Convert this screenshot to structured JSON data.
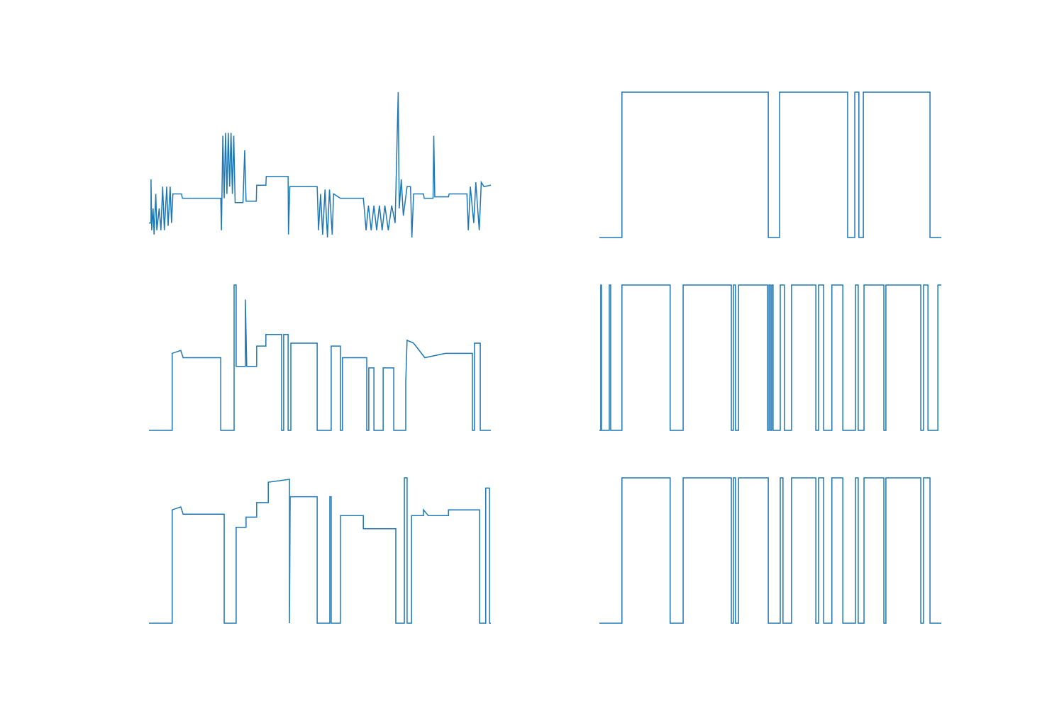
{
  "chart_data": [
    {
      "type": "line",
      "color": "#1f77b4",
      "xlim": [
        0,
        100
      ],
      "ylim": [
        0,
        1
      ],
      "x": [
        0,
        0.6,
        0.6,
        0.8,
        1.2,
        1.5,
        2.0,
        2.3,
        3.0,
        3.5,
        4.0,
        4.5,
        5.2,
        5.6,
        6.2,
        6.6,
        7.0,
        9.5,
        9.8,
        21.0,
        21.2,
        21.6,
        22.0,
        22.4,
        22.8,
        23.2,
        23.6,
        24.0,
        24.4,
        24.8,
        25.2,
        27.5,
        28.0,
        28.4,
        31.4,
        31.5,
        34.2,
        34.3,
        40.7,
        40.8,
        41.2,
        49.2,
        49.6,
        50.2,
        50.8,
        51.5,
        52.2,
        52.8,
        53.6,
        54.0,
        56.0,
        62.7,
        62.9,
        63.5,
        64.2,
        65.0,
        65.8,
        66.6,
        67.4,
        68.2,
        69.0,
        70.0,
        71.0,
        72.0,
        72.9,
        73.2,
        73.8,
        74.4,
        75.5,
        76.5,
        76.9,
        77.4,
        80.3,
        80.5,
        83.1,
        83.3,
        83.6,
        87.6,
        87.8,
        93.0,
        93.4,
        94.0,
        95.0,
        95.6,
        96.6,
        97.2,
        98.0,
        100
      ],
      "values": [
        0.1,
        0.1,
        0.4,
        0.05,
        0.2,
        0.02,
        0.3,
        0.05,
        0.2,
        0.05,
        0.35,
        0.05,
        0.35,
        0.08,
        0.35,
        0.1,
        0.3,
        0.3,
        0.27,
        0.27,
        0.05,
        0.7,
        0.27,
        0.72,
        0.3,
        0.72,
        0.35,
        0.72,
        0.3,
        0.7,
        0.24,
        0.24,
        0.6,
        0.25,
        0.25,
        0.36,
        0.36,
        0.42,
        0.42,
        0.02,
        0.35,
        0.35,
        0.05,
        0.3,
        0.02,
        0.33,
        0.0,
        0.33,
        0.02,
        0.3,
        0.27,
        0.27,
        0.22,
        0.05,
        0.22,
        0.05,
        0.22,
        0.05,
        0.22,
        0.05,
        0.22,
        0.05,
        0.22,
        0.1,
        1.0,
        0.2,
        0.4,
        0.15,
        0.35,
        0.35,
        0.0,
        0.3,
        0.3,
        0.27,
        0.27,
        0.7,
        0.28,
        0.28,
        0.3,
        0.3,
        0.05,
        0.35,
        0.1,
        0.38,
        0.05,
        0.38,
        0.35,
        0.36
      ]
    },
    {
      "type": "line",
      "color": "#1f77b4",
      "xlim": [
        0,
        100
      ],
      "ylim": [
        0,
        1
      ],
      "x": [
        0,
        6.6,
        6.6,
        49.4,
        49.4,
        52.7,
        52.7,
        72.6,
        72.6,
        74.7,
        74.7,
        75.9,
        75.9,
        77.2,
        77.2,
        96.7,
        96.7,
        100
      ],
      "values": [
        0,
        0,
        1,
        1,
        0,
        0,
        1,
        1,
        0,
        0,
        1,
        1,
        0,
        0,
        1,
        1,
        0,
        0
      ]
    },
    {
      "type": "line",
      "color": "#1f77b4",
      "xlim": [
        0,
        100
      ],
      "ylim": [
        0,
        1
      ],
      "x": [
        0,
        6.8,
        6.8,
        9.3,
        10.0,
        21.0,
        21.0,
        24.9,
        24.9,
        25.5,
        25.5,
        28.2,
        28.2,
        28.6,
        31.5,
        31.5,
        34.2,
        34.2,
        38.8,
        38.8,
        39.4,
        39.4,
        40.7,
        40.7,
        41.5,
        41.5,
        49.2,
        49.2,
        53.3,
        53.3,
        56.0,
        56.0,
        56.6,
        56.6,
        63.7,
        63.7,
        64.3,
        64.3,
        65.8,
        65.8,
        68.5,
        68.5,
        71.6,
        71.6,
        75.1,
        75.1,
        75.5,
        77.4,
        80.7,
        86.7,
        94.6,
        94.6,
        95.2,
        95.2,
        96.9,
        96.9,
        100
      ],
      "values": [
        0,
        0,
        0.53,
        0.55,
        0.5,
        0.5,
        0,
        0,
        1.0,
        1.0,
        0.44,
        0.44,
        0.9,
        0.44,
        0.44,
        0.58,
        0.58,
        0.66,
        0.66,
        0,
        0,
        0.66,
        0.66,
        0,
        0,
        0.6,
        0.6,
        0,
        0,
        0.58,
        0.58,
        0,
        0,
        0.5,
        0.5,
        0,
        0,
        0.43,
        0.43,
        0,
        0,
        0.43,
        0.43,
        0,
        0,
        0.33,
        0.62,
        0.6,
        0.5,
        0.53,
        0.53,
        0,
        0,
        0.6,
        0.6,
        0,
        0
      ]
    },
    {
      "type": "line",
      "color": "#1f77b4",
      "xlim": [
        0,
        100
      ],
      "ylim": [
        0,
        1
      ],
      "x": [
        0,
        0.4,
        0.4,
        0.6,
        0.6,
        2.9,
        2.9,
        3.3,
        3.3,
        6.6,
        6.6,
        20.7,
        20.7,
        24.5,
        24.5,
        38.6,
        38.6,
        39.2,
        39.2,
        39.8,
        39.8,
        40.7,
        40.7,
        49.2,
        49.2,
        49.6,
        49.6,
        50.0,
        50.0,
        50.4,
        50.4,
        50.8,
        50.8,
        52.9,
        52.9,
        54.1,
        54.1,
        56.2,
        56.2,
        63.3,
        63.3,
        64.1,
        64.1,
        65.6,
        65.6,
        68.0,
        68.0,
        71.2,
        71.2,
        74.9,
        74.9,
        75.7,
        75.7,
        77.4,
        77.4,
        83.2,
        83.2,
        83.8,
        83.8,
        94.0,
        94.0,
        94.8,
        94.8,
        96.1,
        96.1,
        99.0,
        99.0,
        100
      ],
      "values": [
        0,
        0,
        1,
        1,
        0,
        0,
        1,
        1,
        0,
        0,
        1,
        1,
        0,
        0,
        1,
        1,
        0,
        0,
        1,
        1,
        0,
        0,
        1,
        1,
        0,
        0,
        1,
        1,
        0,
        0,
        1,
        1,
        0,
        0,
        1,
        1,
        0,
        0,
        1,
        1,
        0,
        0,
        1,
        1,
        0,
        0,
        1,
        1,
        0,
        0,
        1,
        1,
        0,
        0,
        1,
        1,
        0,
        0,
        1,
        1,
        0,
        0,
        1,
        1,
        0,
        0,
        1,
        1
      ]
    },
    {
      "type": "line",
      "color": "#1f77b4",
      "xlim": [
        0,
        100
      ],
      "ylim": [
        0,
        1
      ],
      "x": [
        0,
        6.8,
        6.8,
        9.3,
        10.0,
        22.0,
        22.0,
        25.5,
        25.5,
        28.4,
        28.4,
        31.5,
        31.5,
        34.9,
        34.9,
        41.1,
        41.1,
        41.3,
        49.2,
        49.2,
        52.9,
        52.9,
        53.3,
        53.3,
        56.0,
        56.0,
        62.7,
        62.7,
        72.2,
        72.2,
        74.7,
        74.7,
        75.5,
        75.5,
        76.8,
        76.8,
        80.3,
        80.3,
        81.7,
        87.6,
        87.6,
        96.7,
        96.7,
        98.5,
        98.5,
        99.6,
        99.6,
        100
      ],
      "values": [
        0,
        0,
        0.78,
        0.8,
        0.75,
        0.75,
        0,
        0,
        0.66,
        0.66,
        0.73,
        0.73,
        0.83,
        0.83,
        0.97,
        0.99,
        0,
        0.87,
        0.87,
        0,
        0,
        0.87,
        0.87,
        0,
        0,
        0.74,
        0.74,
        0.65,
        0.65,
        0,
        0,
        1.0,
        1.0,
        0,
        0,
        0.74,
        0.74,
        0.78,
        0.74,
        0.74,
        0.78,
        0.78,
        0,
        0,
        0.93,
        0.93,
        0,
        0
      ]
    },
    {
      "type": "line",
      "color": "#1f77b4",
      "xlim": [
        0,
        100
      ],
      "ylim": [
        0,
        1
      ],
      "x": [
        0,
        6.6,
        6.6,
        20.7,
        20.7,
        24.5,
        24.5,
        38.6,
        38.6,
        39.2,
        39.2,
        39.8,
        39.8,
        40.7,
        40.7,
        49.4,
        49.4,
        52.9,
        52.9,
        53.7,
        53.7,
        56.2,
        56.2,
        63.3,
        63.3,
        64.1,
        64.1,
        65.6,
        65.6,
        68.0,
        68.0,
        71.2,
        71.2,
        74.9,
        74.9,
        75.7,
        75.7,
        77.4,
        77.4,
        83.2,
        83.2,
        83.8,
        83.8,
        94.0,
        94.0,
        94.8,
        94.8,
        96.7,
        96.7,
        100
      ],
      "values": [
        0,
        0,
        1,
        1,
        0,
        0,
        1,
        1,
        0,
        0,
        1,
        1,
        0,
        0,
        1,
        1,
        0,
        0,
        1,
        1,
        0,
        0,
        1,
        1,
        0,
        0,
        1,
        1,
        0,
        0,
        1,
        1,
        0,
        0,
        1,
        1,
        0,
        0,
        1,
        1,
        0,
        0,
        1,
        1,
        0,
        0,
        1,
        1,
        0,
        0
      ]
    }
  ]
}
